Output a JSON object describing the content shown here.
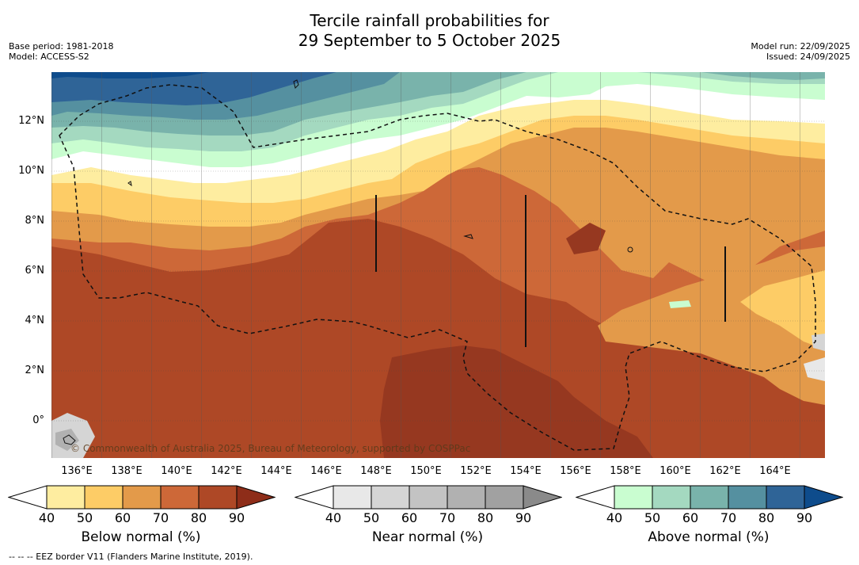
{
  "title": {
    "line1": "Tercile rainfall probabilities for",
    "line2": "29 September to 5 October 2025"
  },
  "meta_left": {
    "base_period": "Base period: 1981-2018",
    "model": "Model: ACCESS-S2"
  },
  "meta_right": {
    "model_run": "Model run: 22/09/2025",
    "issued": "Issued: 24/09/2025"
  },
  "map": {
    "lat_labels": [
      "12°N",
      "10°N",
      "8°N",
      "6°N",
      "4°N",
      "2°N",
      "0°"
    ],
    "lon_labels": [
      "136°E",
      "138°E",
      "140°E",
      "142°E",
      "144°E",
      "146°E",
      "148°E",
      "150°E",
      "152°E",
      "154°E",
      "156°E",
      "158°E",
      "160°E",
      "162°E",
      "164°E"
    ],
    "copyright": "© Commonwealth of Australia 2025, Bureau of Meteorology, supported by COSPPac"
  },
  "colorbars": {
    "below": {
      "title": "Below normal (%)",
      "ticks": [
        "40",
        "50",
        "60",
        "70",
        "80",
        "90"
      ],
      "colors": [
        "#ffffff",
        "#feeda0",
        "#fdcc66",
        "#e39a4a",
        "#cd6838",
        "#ae4826",
        "#8e2d19"
      ]
    },
    "near": {
      "title": "Near normal (%)",
      "ticks": [
        "40",
        "50",
        "60",
        "70",
        "80",
        "90"
      ],
      "colors": [
        "#ffffff",
        "#e8e8e8",
        "#d5d5d5",
        "#c3c3c3",
        "#b1b1b1",
        "#a1a1a1",
        "#8a8a8a"
      ]
    },
    "above": {
      "title": "Above normal (%)",
      "ticks": [
        "40",
        "50",
        "60",
        "70",
        "80",
        "90"
      ],
      "colors": [
        "#ffffff",
        "#c9fdd0",
        "#a4d9c0",
        "#79b3ab",
        "#5590a0",
        "#2f6497",
        "#0e4c8c"
      ]
    }
  },
  "footnote": "--  --  -- EEZ border V11 (Flanders Marine Institute, 2019)."
}
